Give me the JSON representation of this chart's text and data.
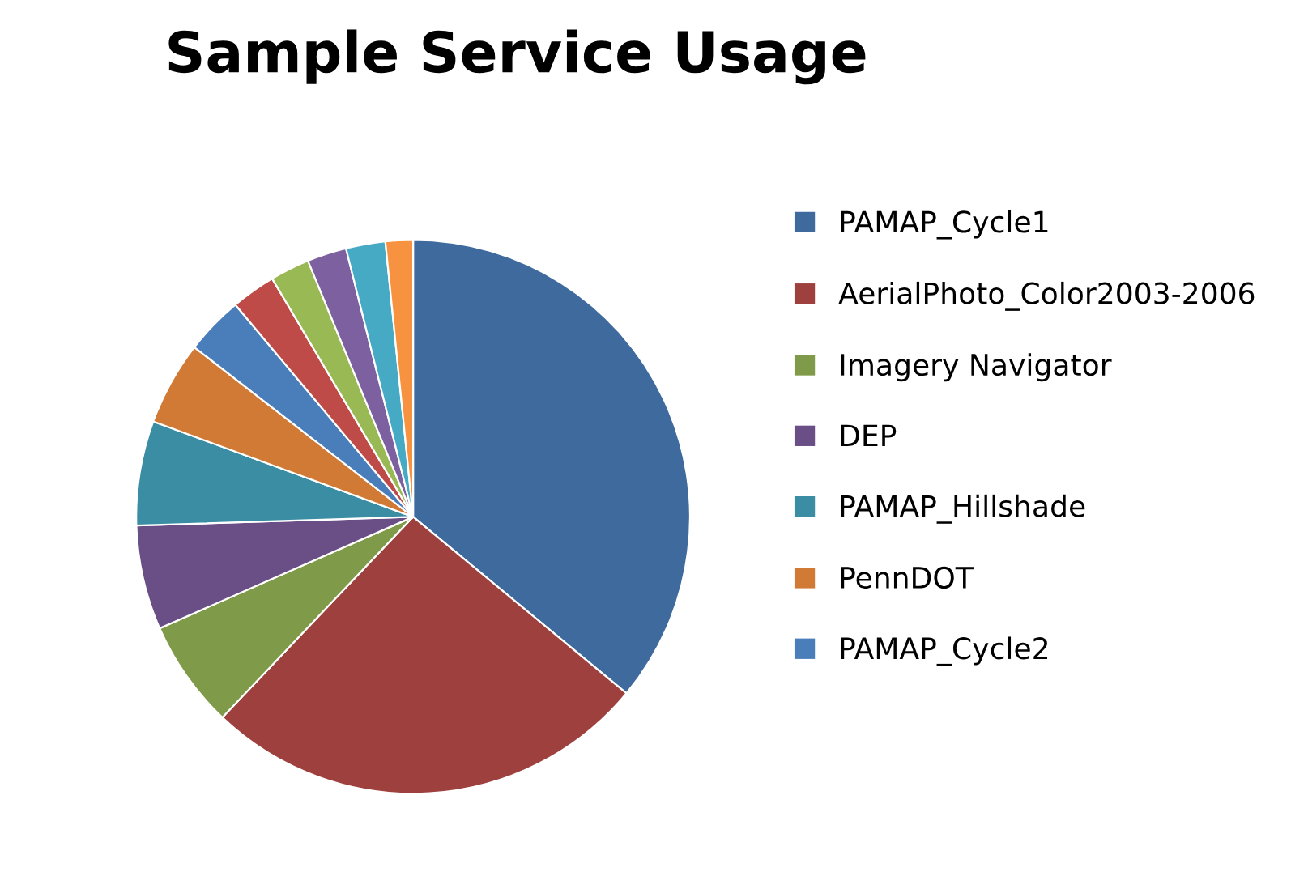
{
  "chart_data": {
    "type": "pie",
    "title": "Sample Service Usage",
    "categories": [
      "PAMAP_Cycle1",
      "AerialPhoto_Color2003-2006",
      "Imagery Navigator",
      "DEP",
      "PAMAP_Hillshade",
      "PennDOT",
      "PAMAP_Cycle2",
      null,
      null,
      null,
      null,
      null
    ],
    "values": [
      36.0,
      26.1,
      6.3,
      6.1,
      6.1,
      4.9,
      3.4,
      2.6,
      2.3,
      2.3,
      2.3,
      1.6
    ],
    "colors": [
      "#3f6a9e",
      "#9e413e",
      "#7f9a48",
      "#6a4e86",
      "#3a8da3",
      "#d07a35",
      "#4a7ebb",
      "#be4b48",
      "#98b954",
      "#7d60a0",
      "#46aac5",
      "#f69240"
    ],
    "legend": "right"
  }
}
